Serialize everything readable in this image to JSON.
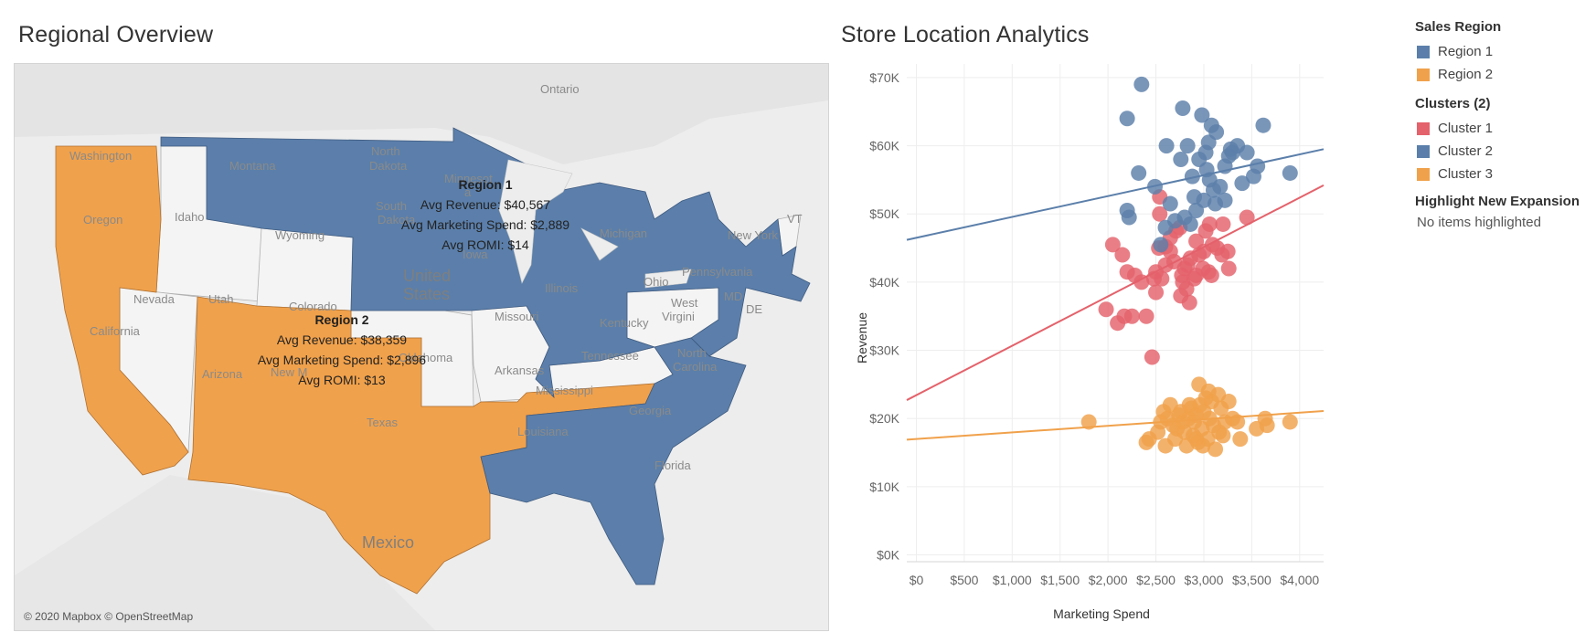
{
  "titles": {
    "map": "Regional Overview",
    "chart": "Store Location Analytics"
  },
  "map": {
    "attribution": "© 2020 Mapbox © OpenStreetMap",
    "labels": {
      "ontario": "Ontario",
      "north_dakota_1": "North",
      "north_dakota_2": "Dakota",
      "montana": "Montana",
      "washington": "Washington",
      "oregon": "Oregon",
      "idaho": "Idaho",
      "wyoming": "Wyoming",
      "south_dakota_1": "South",
      "south_dakota_2": "Dakota",
      "minnesota_1": "Minnesot",
      "minnesota_2": "a",
      "iowa": "Iowa",
      "nevada": "Nevada",
      "utah": "Utah",
      "colorado": "Colorado",
      "california": "California",
      "arizona": "Arizona",
      "new_mexico": "New M",
      "oklahoma": "Oklahoma",
      "texas": "Texas",
      "missouri": "Missouri",
      "arkansas": "Arkansas",
      "illinois": "Illinois",
      "ohio": "Ohio",
      "michigan": "Michigan",
      "pennsylvania": "Pennsylvania",
      "new_york": "New York",
      "vt": "VT",
      "md": "MD",
      "de": "DE",
      "west_virginia_1": "West",
      "west_virginia_2": "Virgini",
      "kentucky": "Kentucky",
      "tennessee": "Tennessee",
      "north_carolina_1": "North",
      "north_carolina_2": "Carolina",
      "mississippi": "Mississippi",
      "louisiana": "Louisiana",
      "georgia": "Georgia",
      "florida": "Florida",
      "united_states_1": "United",
      "united_states_2": "States",
      "mexico": "Mexico"
    },
    "region1_tooltip": {
      "title": "Region 1",
      "revenue": "Avg Revenue: $40,567",
      "spend": "Avg Marketing Spend: $2,889",
      "romi": "Avg ROMI: $14"
    },
    "region2_tooltip": {
      "title": "Region 2",
      "revenue": "Avg Revenue: $38,359",
      "spend": "Avg Marketing Spend: $2,896",
      "romi": "Avg ROMI: $13"
    }
  },
  "legend": {
    "sales_region": {
      "title": "Sales Region",
      "items": [
        {
          "label": "Region 1",
          "color": "#5b7faa"
        },
        {
          "label": "Region 2",
          "color": "#f0a14b"
        }
      ]
    },
    "clusters": {
      "title": "Clusters (2)",
      "items": [
        {
          "label": "Cluster 1",
          "color": "#e4626b"
        },
        {
          "label": "Cluster 2",
          "color": "#5b7faa"
        },
        {
          "label": "Cluster 3",
          "color": "#f0a14b"
        }
      ]
    },
    "highlight": {
      "title": "Highlight New Expansion",
      "text": "No items highlighted"
    }
  },
  "chart_data": {
    "type": "scatter",
    "title": "Store Location Analytics",
    "xlabel": "Marketing Spend",
    "ylabel": "Revenue",
    "xlim": [
      -100,
      4250
    ],
    "ylim": [
      -1000,
      72000
    ],
    "x_ticks": [
      0,
      500,
      1000,
      1500,
      2000,
      2500,
      3000,
      3500,
      4000
    ],
    "x_tick_labels": [
      "$0",
      "$500",
      "$1,000",
      "$1,500",
      "$2,000",
      "$2,500",
      "$3,000",
      "$3,500",
      "$4,000"
    ],
    "y_ticks": [
      0,
      10000,
      20000,
      30000,
      40000,
      50000,
      60000,
      70000
    ],
    "y_tick_labels": [
      "$0K",
      "$10K",
      "$20K",
      "$30K",
      "$40K",
      "$50K",
      "$60K",
      "$70K"
    ],
    "series": [
      {
        "name": "Cluster 1",
        "color": "#e4626b",
        "trend": [
          [
            -100,
            22700
          ],
          [
            4250,
            54200
          ]
        ],
        "points": [
          [
            2050,
            45500
          ],
          [
            1980,
            36000
          ],
          [
            2100,
            34000
          ],
          [
            2170,
            35000
          ],
          [
            2250,
            35000
          ],
          [
            2400,
            35000
          ],
          [
            2460,
            29000
          ],
          [
            2200,
            41500
          ],
          [
            2150,
            44000
          ],
          [
            2280,
            41000
          ],
          [
            2350,
            40000
          ],
          [
            2480,
            40500
          ],
          [
            2500,
            38500
          ],
          [
            2500,
            41500
          ],
          [
            2560,
            40500
          ],
          [
            2600,
            42500
          ],
          [
            2650,
            44500
          ],
          [
            2690,
            43000
          ],
          [
            2530,
            45000
          ],
          [
            2600,
            45200
          ],
          [
            2540,
            50000
          ],
          [
            2650,
            46500
          ],
          [
            2710,
            47500
          ],
          [
            2750,
            48000
          ],
          [
            2770,
            41000
          ],
          [
            2800,
            42000
          ],
          [
            2780,
            40000
          ],
          [
            2830,
            42500
          ],
          [
            2860,
            43500
          ],
          [
            2900,
            40500
          ],
          [
            2920,
            41000
          ],
          [
            2950,
            44000
          ],
          [
            3000,
            44500
          ],
          [
            3020,
            47500
          ],
          [
            3060,
            48500
          ],
          [
            3050,
            41500
          ],
          [
            3080,
            41000
          ],
          [
            3090,
            45500
          ],
          [
            3140,
            45000
          ],
          [
            3190,
            44000
          ],
          [
            3200,
            48500
          ],
          [
            3250,
            44500
          ],
          [
            3260,
            42000
          ],
          [
            3450,
            49500
          ],
          [
            2760,
            38000
          ],
          [
            2820,
            39000
          ],
          [
            2850,
            37000
          ],
          [
            2920,
            46000
          ],
          [
            2990,
            42000
          ],
          [
            2540,
            52500
          ]
        ]
      },
      {
        "name": "Cluster 2",
        "color": "#5b7faa",
        "trend": [
          [
            -100,
            46200
          ],
          [
            4250,
            59500
          ]
        ],
        "points": [
          [
            2200,
            64000
          ],
          [
            2350,
            69000
          ],
          [
            2320,
            56000
          ],
          [
            2490,
            54000
          ],
          [
            2200,
            50500
          ],
          [
            2220,
            49500
          ],
          [
            2610,
            60000
          ],
          [
            2650,
            51500
          ],
          [
            2700,
            49000
          ],
          [
            2760,
            58000
          ],
          [
            2780,
            65500
          ],
          [
            2830,
            60000
          ],
          [
            2880,
            55500
          ],
          [
            2900,
            52500
          ],
          [
            2920,
            50500
          ],
          [
            2950,
            58000
          ],
          [
            2980,
            64500
          ],
          [
            3020,
            59000
          ],
          [
            3050,
            60500
          ],
          [
            3080,
            63000
          ],
          [
            3030,
            56500
          ],
          [
            3060,
            55000
          ],
          [
            3100,
            53500
          ],
          [
            3120,
            51500
          ],
          [
            3130,
            62000
          ],
          [
            3170,
            54000
          ],
          [
            3220,
            57000
          ],
          [
            3260,
            58500
          ],
          [
            3280,
            59500
          ],
          [
            3300,
            59000
          ],
          [
            3350,
            60000
          ],
          [
            3400,
            54500
          ],
          [
            3450,
            59000
          ],
          [
            3520,
            55500
          ],
          [
            3560,
            57000
          ],
          [
            3620,
            63000
          ],
          [
            3900,
            56000
          ],
          [
            2550,
            45500
          ],
          [
            2600,
            48000
          ],
          [
            2800,
            49500
          ],
          [
            2860,
            48500
          ],
          [
            3000,
            52000
          ],
          [
            3220,
            52000
          ]
        ]
      },
      {
        "name": "Cluster 3",
        "color": "#f0a14b",
        "trend": [
          [
            -100,
            16900
          ],
          [
            4250,
            21100
          ]
        ],
        "points": [
          [
            1800,
            19500
          ],
          [
            2400,
            16500
          ],
          [
            2430,
            17000
          ],
          [
            2520,
            18000
          ],
          [
            2550,
            19500
          ],
          [
            2580,
            21000
          ],
          [
            2600,
            16000
          ],
          [
            2620,
            20000
          ],
          [
            2650,
            22000
          ],
          [
            2680,
            19000
          ],
          [
            2700,
            17000
          ],
          [
            2720,
            18500
          ],
          [
            2740,
            20500
          ],
          [
            2760,
            21000
          ],
          [
            2780,
            19500
          ],
          [
            2800,
            18000
          ],
          [
            2820,
            16000
          ],
          [
            2840,
            20000
          ],
          [
            2850,
            22000
          ],
          [
            2870,
            21500
          ],
          [
            2890,
            17500
          ],
          [
            2900,
            19500
          ],
          [
            2920,
            20500
          ],
          [
            2950,
            25000
          ],
          [
            2960,
            22000
          ],
          [
            2980,
            18500
          ],
          [
            3000,
            21000
          ],
          [
            3020,
            23000
          ],
          [
            3040,
            17000
          ],
          [
            3060,
            20000
          ],
          [
            3080,
            22500
          ],
          [
            3100,
            19000
          ],
          [
            3120,
            15500
          ],
          [
            3150,
            23500
          ],
          [
            3160,
            18000
          ],
          [
            3180,
            21500
          ],
          [
            3200,
            17500
          ],
          [
            3220,
            19500
          ],
          [
            3260,
            22500
          ],
          [
            3300,
            20000
          ],
          [
            3350,
            19500
          ],
          [
            3380,
            17000
          ],
          [
            3550,
            18500
          ],
          [
            3640,
            20000
          ],
          [
            3660,
            19000
          ],
          [
            3900,
            19500
          ],
          [
            2920,
            17000
          ],
          [
            2940,
            16500
          ],
          [
            2990,
            16000
          ],
          [
            3050,
            24000
          ]
        ]
      }
    ]
  }
}
